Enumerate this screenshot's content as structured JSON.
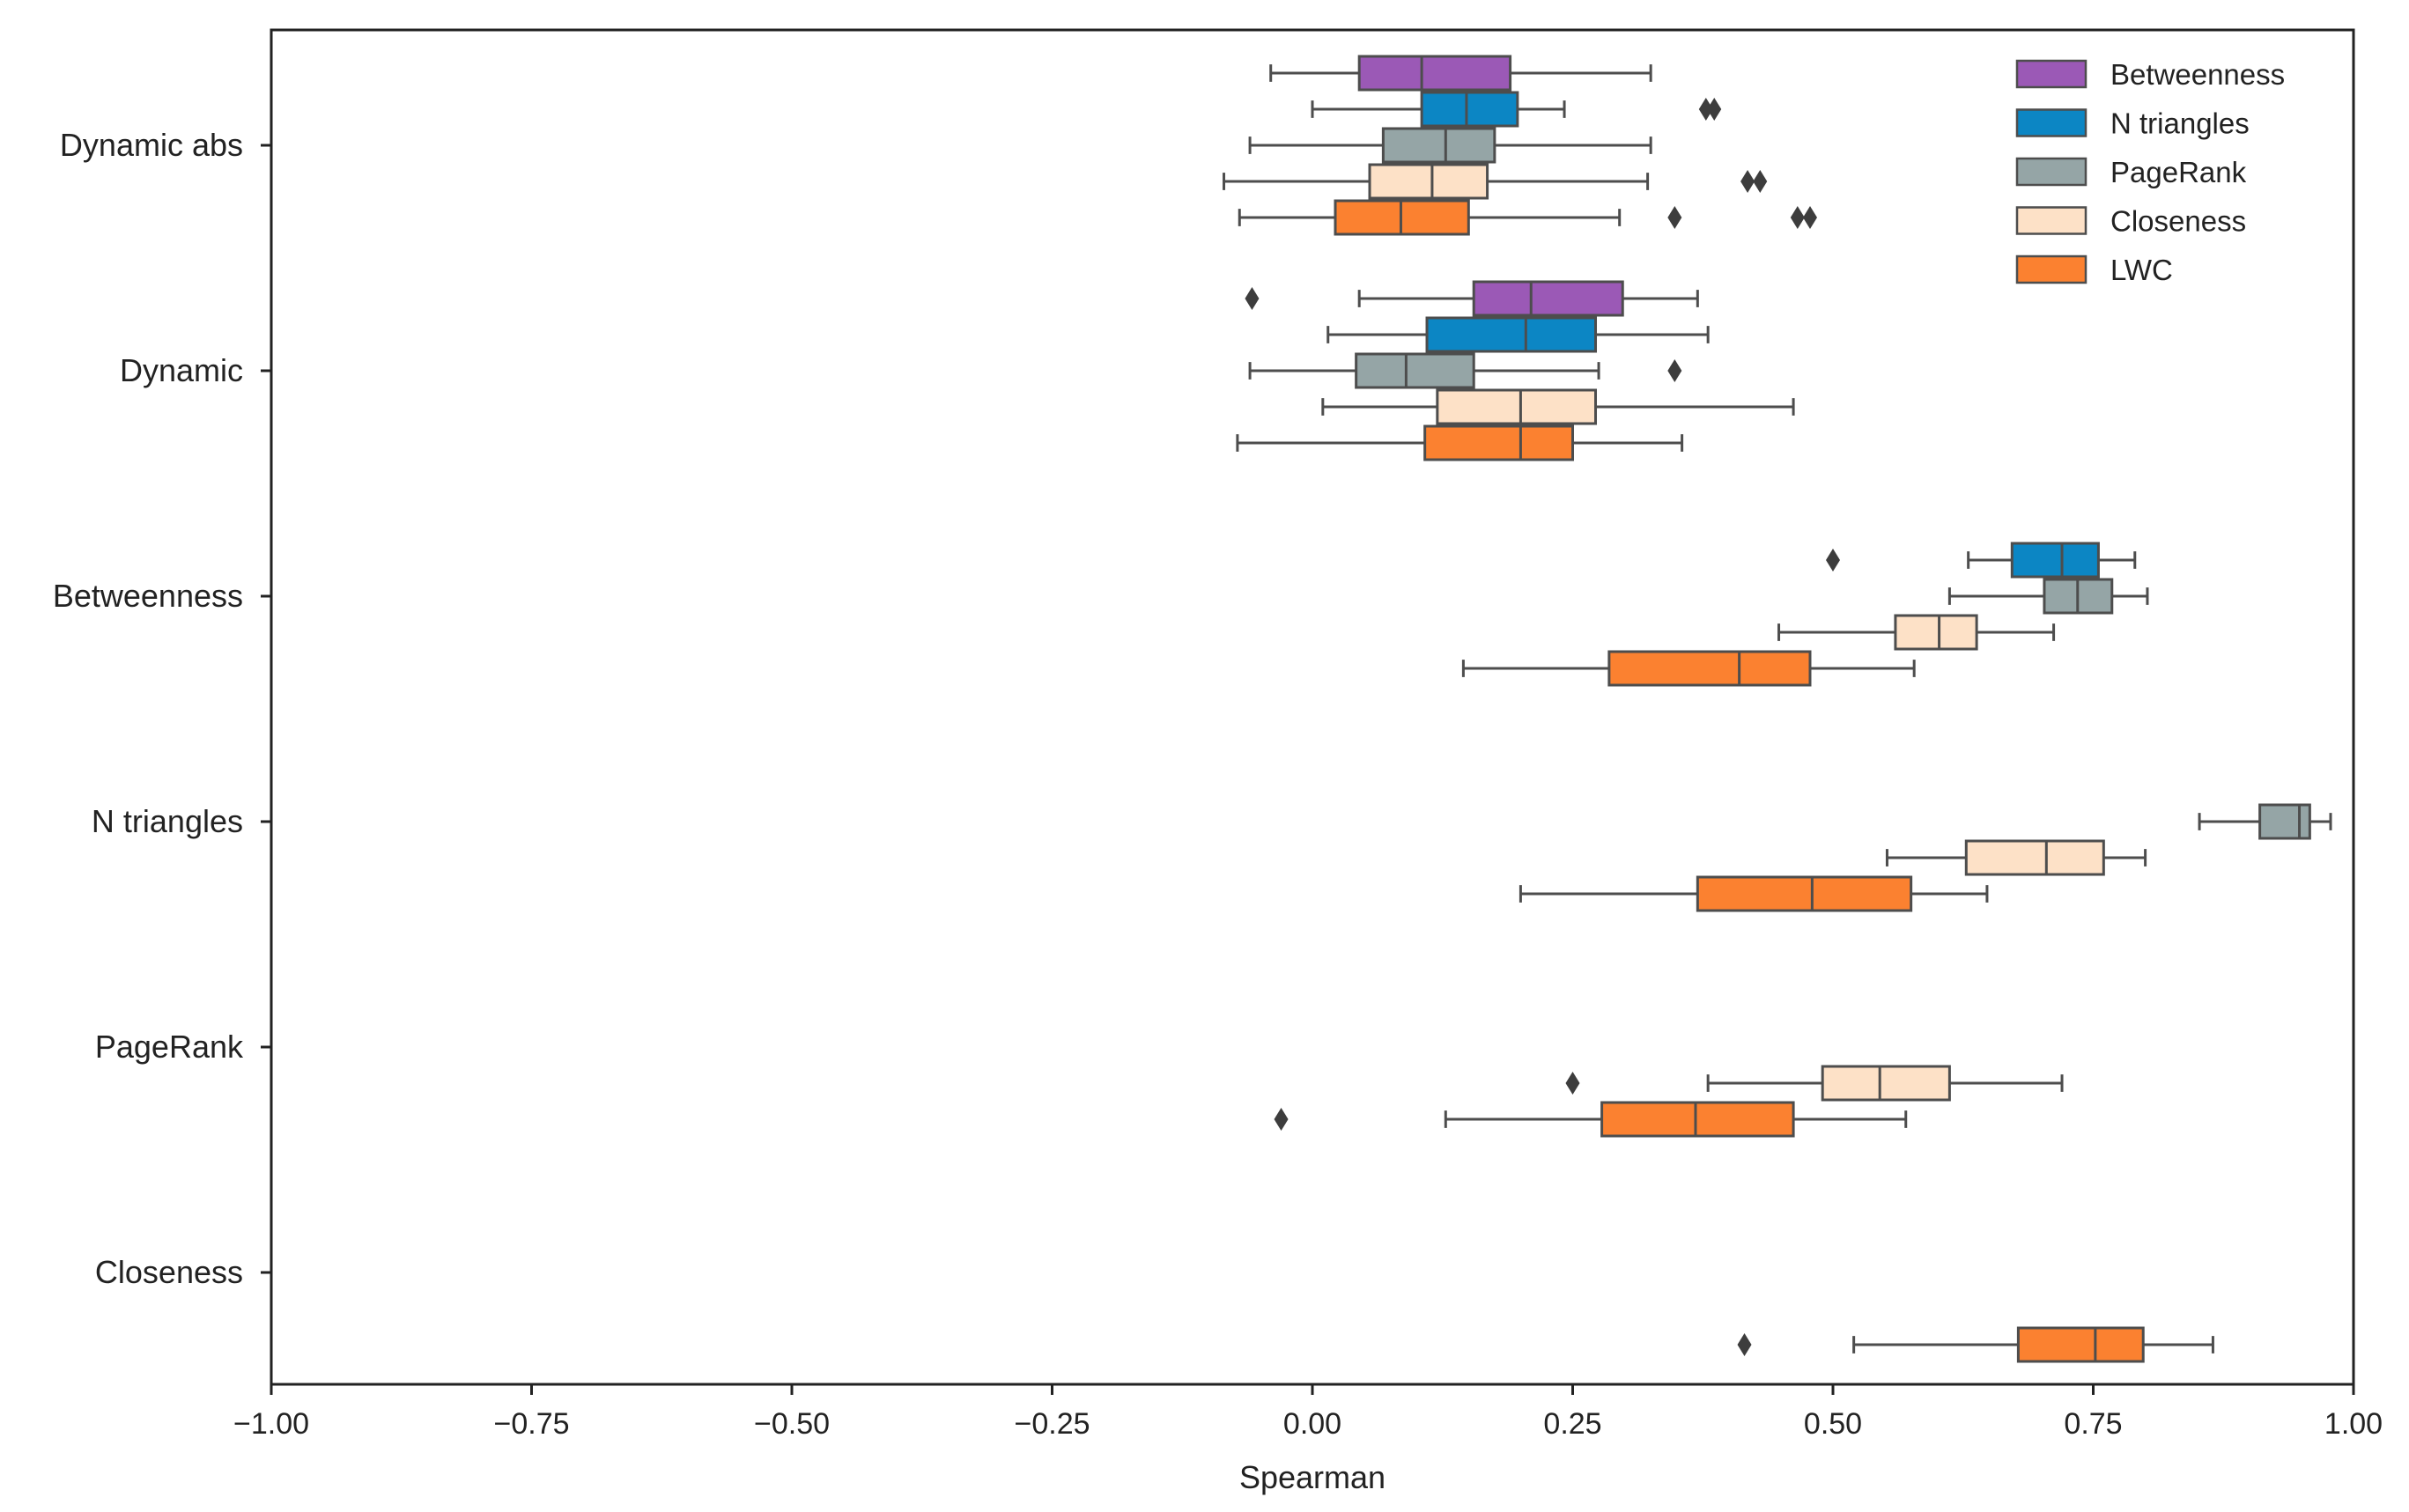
{
  "chart_data": {
    "type": "boxplot",
    "orientation": "horizontal",
    "title": "",
    "xlabel": "Spearman",
    "ylabel": "",
    "xlim": [
      -1.0,
      1.0
    ],
    "xticks": [
      -1.0,
      -0.75,
      -0.5,
      -0.25,
      0.0,
      0.25,
      0.5,
      0.75,
      1.0
    ],
    "xtick_labels": [
      "−1.00",
      "−0.75",
      "−0.50",
      "−0.25",
      "0.00",
      "0.25",
      "0.50",
      "0.75",
      "1.00"
    ],
    "grid": false,
    "legend_position": "top-right",
    "categories": [
      "Dynamic abs",
      "Dynamic",
      "Betweenness",
      "N triangles",
      "PageRank",
      "Closeness"
    ],
    "series": [
      {
        "name": "Betweenness",
        "color": "#9b59b6"
      },
      {
        "name": "N triangles",
        "color": "#0c86c4"
      },
      {
        "name": "PageRank",
        "color": "#95a5a6"
      },
      {
        "name": "Closeness",
        "color": "#fde1c7"
      },
      {
        "name": "LWC",
        "color": "#fb8130"
      }
    ],
    "boxes": [
      {
        "category": "Dynamic abs",
        "series": "Betweenness",
        "whislo": -0.04,
        "q1": 0.045,
        "median": 0.105,
        "q3": 0.19,
        "whishi": 0.325,
        "fliers": []
      },
      {
        "category": "Dynamic abs",
        "series": "N triangles",
        "whislo": 0.0,
        "q1": 0.105,
        "median": 0.148,
        "q3": 0.197,
        "whishi": 0.242,
        "fliers": [
          0.378,
          0.386
        ]
      },
      {
        "category": "Dynamic abs",
        "series": "PageRank",
        "whislo": -0.06,
        "q1": 0.068,
        "median": 0.128,
        "q3": 0.175,
        "whishi": 0.325,
        "fliers": []
      },
      {
        "category": "Dynamic abs",
        "series": "Closeness",
        "whislo": -0.085,
        "q1": 0.055,
        "median": 0.115,
        "q3": 0.168,
        "whishi": 0.322,
        "fliers": [
          0.418,
          0.43
        ]
      },
      {
        "category": "Dynamic abs",
        "series": "LWC",
        "whislo": -0.07,
        "q1": 0.022,
        "median": 0.085,
        "q3": 0.15,
        "whishi": 0.295,
        "fliers": [
          0.348,
          0.466,
          0.478
        ]
      },
      {
        "category": "Dynamic",
        "series": "Betweenness",
        "whislo": 0.045,
        "q1": 0.155,
        "median": 0.21,
        "q3": 0.298,
        "whishi": 0.37,
        "fliers": [
          -0.058
        ]
      },
      {
        "category": "Dynamic",
        "series": "N triangles",
        "whislo": 0.015,
        "q1": 0.11,
        "median": 0.205,
        "q3": 0.272,
        "whishi": 0.38,
        "fliers": []
      },
      {
        "category": "Dynamic",
        "series": "PageRank",
        "whislo": -0.06,
        "q1": 0.042,
        "median": 0.09,
        "q3": 0.155,
        "whishi": 0.275,
        "fliers": [
          0.348
        ]
      },
      {
        "category": "Dynamic",
        "series": "Closeness",
        "whislo": 0.01,
        "q1": 0.12,
        "median": 0.2,
        "q3": 0.272,
        "whishi": 0.462,
        "fliers": []
      },
      {
        "category": "Dynamic",
        "series": "LWC",
        "whislo": -0.072,
        "q1": 0.108,
        "median": 0.2,
        "q3": 0.25,
        "whishi": 0.355,
        "fliers": []
      },
      {
        "category": "Betweenness",
        "series": "N triangles",
        "whislo": 0.63,
        "q1": 0.672,
        "median": 0.72,
        "q3": 0.755,
        "whishi": 0.79,
        "fliers": [
          0.5
        ]
      },
      {
        "category": "Betweenness",
        "series": "PageRank",
        "whislo": 0.612,
        "q1": 0.703,
        "median": 0.735,
        "q3": 0.768,
        "whishi": 0.802,
        "fliers": []
      },
      {
        "category": "Betweenness",
        "series": "Closeness",
        "whislo": 0.448,
        "q1": 0.56,
        "median": 0.602,
        "q3": 0.638,
        "whishi": 0.712,
        "fliers": []
      },
      {
        "category": "Betweenness",
        "series": "LWC",
        "whislo": 0.145,
        "q1": 0.285,
        "median": 0.41,
        "q3": 0.478,
        "whishi": 0.578,
        "fliers": []
      },
      {
        "category": "N triangles",
        "series": "PageRank",
        "whislo": 0.852,
        "q1": 0.91,
        "median": 0.948,
        "q3": 0.958,
        "whishi": 0.978,
        "fliers": []
      },
      {
        "category": "N triangles",
        "series": "Closeness",
        "whislo": 0.552,
        "q1": 0.628,
        "median": 0.705,
        "q3": 0.76,
        "whishi": 0.8,
        "fliers": []
      },
      {
        "category": "N triangles",
        "series": "LWC",
        "whislo": 0.2,
        "q1": 0.37,
        "median": 0.48,
        "q3": 0.575,
        "whishi": 0.648,
        "fliers": []
      },
      {
        "category": "PageRank",
        "series": "Closeness",
        "whislo": 0.38,
        "q1": 0.49,
        "median": 0.545,
        "q3": 0.612,
        "whishi": 0.72,
        "fliers": [
          0.25
        ]
      },
      {
        "category": "PageRank",
        "series": "LWC",
        "whislo": 0.128,
        "q1": 0.278,
        "median": 0.368,
        "q3": 0.462,
        "whishi": 0.57,
        "fliers": [
          -0.03
        ]
      },
      {
        "category": "Closeness",
        "series": "LWC",
        "whislo": 0.52,
        "q1": 0.678,
        "median": 0.752,
        "q3": 0.798,
        "whishi": 0.865,
        "fliers": [
          0.415
        ]
      }
    ]
  },
  "colors": {
    "axis": "#222222",
    "box_edge": "#4d4d4d",
    "flier": "#3d3d3d",
    "background": "#ffffff"
  }
}
